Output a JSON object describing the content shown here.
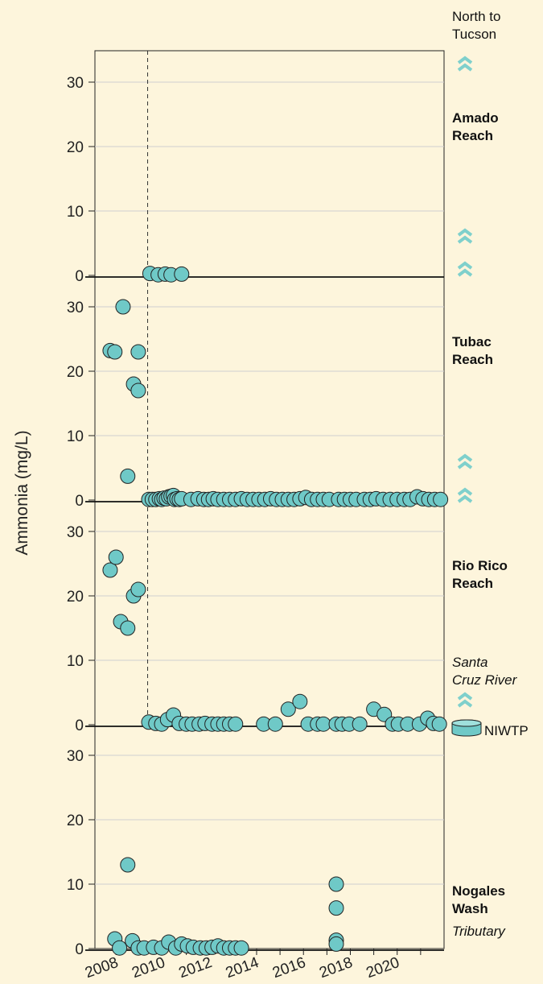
{
  "chart_data": {
    "type": "scatter",
    "ylabel": "Ammonia (mg/L)",
    "x_ticks": [
      2008,
      2010,
      2012,
      2014,
      2016,
      2018,
      2020
    ],
    "xlim": [
      2007.1,
      2022.0
    ],
    "ylim": [
      0,
      35
    ],
    "y_ticks": [
      0,
      10,
      20,
      30
    ],
    "reference_line_x": 2009.35,
    "marker_color": "#6fc9c7",
    "chevron_color": "#7fd0cc",
    "annotations": {
      "north": "North to Tucson",
      "river": "Santa Cruz River",
      "plant": "NIWTP"
    },
    "panels": [
      {
        "name": "Amado Reach",
        "points": [
          [
            2009.45,
            0.3
          ],
          [
            2009.8,
            0.1
          ],
          [
            2010.1,
            0.2
          ],
          [
            2010.35,
            0.1
          ],
          [
            2010.8,
            0.2
          ]
        ]
      },
      {
        "name": "Tubac Reach",
        "points": [
          [
            2007.75,
            23.2
          ],
          [
            2007.95,
            23
          ],
          [
            2008.3,
            30
          ],
          [
            2008.5,
            3.7
          ],
          [
            2008.75,
            18
          ],
          [
            2008.95,
            23
          ],
          [
            2008.95,
            17
          ],
          [
            2009.4,
            0.1
          ],
          [
            2009.55,
            0.1
          ],
          [
            2009.7,
            0.1
          ],
          [
            2009.85,
            0.2
          ],
          [
            2009.95,
            0.1
          ],
          [
            2010.05,
            0.3
          ],
          [
            2010.15,
            0.2
          ],
          [
            2010.25,
            0.5
          ],
          [
            2010.35,
            0.6
          ],
          [
            2010.45,
            0.7
          ],
          [
            2010.5,
            0.1
          ],
          [
            2010.6,
            0.2
          ],
          [
            2010.7,
            0.1
          ],
          [
            2010.8,
            0.2
          ],
          [
            2011.2,
            0.1
          ],
          [
            2011.5,
            0.2
          ],
          [
            2011.75,
            0.1
          ],
          [
            2011.95,
            0.1
          ],
          [
            2012.15,
            0.2
          ],
          [
            2012.35,
            0.1
          ],
          [
            2012.6,
            0.1
          ],
          [
            2012.85,
            0.1
          ],
          [
            2013.1,
            0.1
          ],
          [
            2013.35,
            0.2
          ],
          [
            2013.6,
            0.1
          ],
          [
            2013.85,
            0.1
          ],
          [
            2014.1,
            0.1
          ],
          [
            2014.35,
            0.1
          ],
          [
            2014.6,
            0.2
          ],
          [
            2014.85,
            0.1
          ],
          [
            2015.1,
            0.1
          ],
          [
            2015.35,
            0.1
          ],
          [
            2015.6,
            0.1
          ],
          [
            2015.85,
            0.2
          ],
          [
            2016.1,
            0.4
          ],
          [
            2016.35,
            0.1
          ],
          [
            2016.6,
            0.1
          ],
          [
            2016.85,
            0.1
          ],
          [
            2017.1,
            0.1
          ],
          [
            2017.5,
            0.1
          ],
          [
            2017.75,
            0.1
          ],
          [
            2018.0,
            0.1
          ],
          [
            2018.25,
            0.1
          ],
          [
            2018.6,
            0.1
          ],
          [
            2018.85,
            0.1
          ],
          [
            2019.1,
            0.2
          ],
          [
            2019.4,
            0.1
          ],
          [
            2019.7,
            0.1
          ],
          [
            2020.0,
            0.1
          ],
          [
            2020.3,
            0.1
          ],
          [
            2020.55,
            0.1
          ],
          [
            2020.85,
            0.5
          ],
          [
            2021.1,
            0.2
          ],
          [
            2021.35,
            0.1
          ],
          [
            2021.6,
            0.1
          ],
          [
            2021.85,
            0.1
          ]
        ]
      },
      {
        "name": "Rio Rico Reach",
        "points": [
          [
            2007.75,
            24
          ],
          [
            2008.0,
            26
          ],
          [
            2008.2,
            16
          ],
          [
            2008.5,
            15
          ],
          [
            2008.75,
            20
          ],
          [
            2008.95,
            21
          ],
          [
            2009.4,
            0.4
          ],
          [
            2009.7,
            0.2
          ],
          [
            2009.95,
            0.1
          ],
          [
            2010.2,
            0.8
          ],
          [
            2010.45,
            1.5
          ],
          [
            2010.7,
            0.2
          ],
          [
            2011.0,
            0.1
          ],
          [
            2011.25,
            0.1
          ],
          [
            2011.55,
            0.1
          ],
          [
            2011.8,
            0.2
          ],
          [
            2012.1,
            0.1
          ],
          [
            2012.35,
            0.1
          ],
          [
            2012.6,
            0.1
          ],
          [
            2012.85,
            0.1
          ],
          [
            2013.1,
            0.1
          ],
          [
            2014.3,
            0.1
          ],
          [
            2014.8,
            0.1
          ],
          [
            2015.35,
            2.4
          ],
          [
            2015.85,
            3.6
          ],
          [
            2016.2,
            0.1
          ],
          [
            2016.6,
            0.1
          ],
          [
            2016.85,
            0.1
          ],
          [
            2017.4,
            0.1
          ],
          [
            2017.65,
            0.1
          ],
          [
            2017.95,
            0.1
          ],
          [
            2018.4,
            0.1
          ],
          [
            2019.0,
            2.4
          ],
          [
            2019.45,
            1.6
          ],
          [
            2019.8,
            0.1
          ],
          [
            2020.05,
            0.1
          ],
          [
            2020.45,
            0.1
          ],
          [
            2020.95,
            0.1
          ],
          [
            2021.3,
            1.0
          ],
          [
            2021.55,
            0.2
          ],
          [
            2021.8,
            0.1
          ]
        ]
      },
      {
        "name": "Nogales Wash",
        "subtitle": "Tributary",
        "points": [
          [
            2007.95,
            1.5
          ],
          [
            2008.15,
            0.1
          ],
          [
            2008.5,
            13
          ],
          [
            2008.7,
            1.2
          ],
          [
            2008.95,
            0.1
          ],
          [
            2009.2,
            0.1
          ],
          [
            2009.6,
            0.2
          ],
          [
            2009.95,
            0.1
          ],
          [
            2010.25,
            1.0
          ],
          [
            2010.55,
            0.1
          ],
          [
            2010.8,
            0.7
          ],
          [
            2011.05,
            0.4
          ],
          [
            2011.3,
            0.2
          ],
          [
            2011.6,
            0.1
          ],
          [
            2011.85,
            0.1
          ],
          [
            2012.1,
            0.2
          ],
          [
            2012.35,
            0.4
          ],
          [
            2012.6,
            0.1
          ],
          [
            2012.85,
            0.1
          ],
          [
            2013.1,
            0.1
          ],
          [
            2013.35,
            0.1
          ],
          [
            2017.4,
            10
          ],
          [
            2017.4,
            6.3
          ],
          [
            2017.4,
            1.3
          ],
          [
            2017.4,
            0.7
          ]
        ]
      }
    ]
  }
}
